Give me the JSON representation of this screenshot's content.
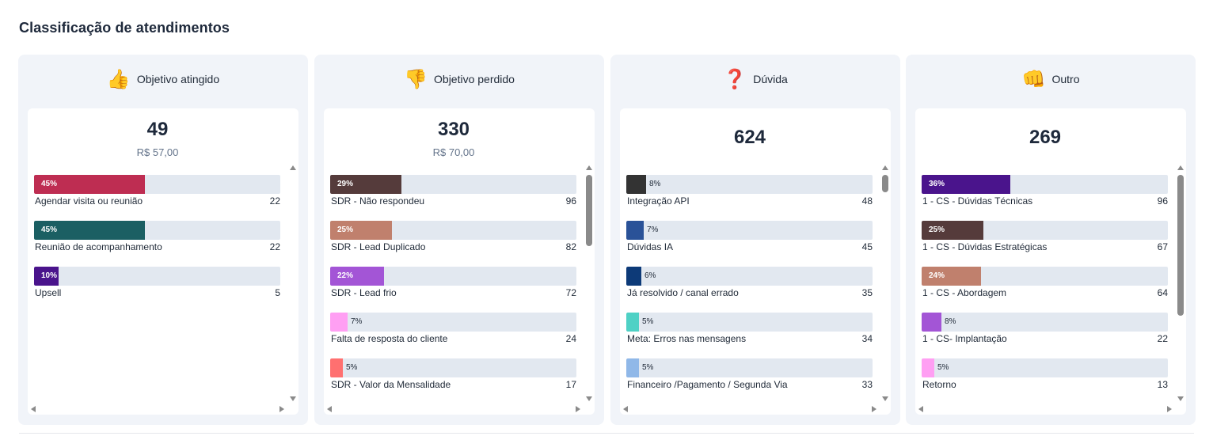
{
  "section": {
    "title": "Classificação de atendimentos"
  },
  "cards": [
    {
      "emoji": "👍",
      "icon": "thumbs-up-icon",
      "label": "Objetivo atingido",
      "total": "49",
      "value": "R$ 57,00",
      "items": [
        {
          "pct_label": "45%",
          "pct": 0.45,
          "color": "#be2d52",
          "label": "Agendar visita ou reunião",
          "count": "22"
        },
        {
          "pct_label": "45%",
          "pct": 0.45,
          "color": "#1b5f63",
          "label": "Reunião de acompanhamento",
          "count": "22"
        },
        {
          "pct_label": "10%",
          "pct": 0.1,
          "color": "#4a148c",
          "label": "Upsell",
          "count": "5"
        }
      ]
    },
    {
      "emoji": "👎",
      "icon": "thumbs-down-icon",
      "label": "Objetivo perdido",
      "total": "330",
      "value": "R$ 70,00",
      "items": [
        {
          "pct_label": "29%",
          "pct": 0.29,
          "color": "#553b3b",
          "label": "SDR - Não respondeu",
          "count": "96"
        },
        {
          "pct_label": "25%",
          "pct": 0.25,
          "color": "#c0806d",
          "label": "SDR - Lead Duplicado",
          "count": "82"
        },
        {
          "pct_label": "22%",
          "pct": 0.22,
          "color": "#a355d6",
          "label": "SDR - Lead frio",
          "count": "72"
        },
        {
          "pct_label": "7%",
          "pct": 0.07,
          "color": "#ff9ff3",
          "label": "Falta de resposta do cliente",
          "count": "24"
        },
        {
          "pct_label": "5%",
          "pct": 0.05,
          "color": "#ff7070",
          "label": "SDR - Valor da Mensalidade",
          "count": "17"
        }
      ]
    },
    {
      "emoji": "❓",
      "icon": "question-mark-icon",
      "label": "Dúvida",
      "total": "624",
      "value": "",
      "items": [
        {
          "pct_label": "8%",
          "pct": 0.08,
          "color": "#333333",
          "label": "Integração API",
          "count": "48"
        },
        {
          "pct_label": "7%",
          "pct": 0.07,
          "color": "#2a5298",
          "label": "Dúvidas IA",
          "count": "45"
        },
        {
          "pct_label": "6%",
          "pct": 0.06,
          "color": "#0d3a78",
          "label": "Já resolvido / canal errado",
          "count": "35"
        },
        {
          "pct_label": "5%",
          "pct": 0.05,
          "color": "#4fd1c5",
          "label": "Meta: Erros nas mensagens",
          "count": "34"
        },
        {
          "pct_label": "5%",
          "pct": 0.05,
          "color": "#90b8e8",
          "label": "Financeiro /Pagamento / Segunda Via",
          "count": "33"
        }
      ]
    },
    {
      "emoji": "👊",
      "icon": "fist-icon",
      "label": "Outro",
      "total": "269",
      "value": "",
      "items": [
        {
          "pct_label": "36%",
          "pct": 0.36,
          "color": "#4a148c",
          "label": "1 - CS - Dúvidas Técnicas",
          "count": "96"
        },
        {
          "pct_label": "25%",
          "pct": 0.25,
          "color": "#553b3b",
          "label": "1 - CS - Dúvidas Estratégicas",
          "count": "67"
        },
        {
          "pct_label": "24%",
          "pct": 0.24,
          "color": "#c0806d",
          "label": "1 - CS - Abordagem",
          "count": "64"
        },
        {
          "pct_label": "8%",
          "pct": 0.08,
          "color": "#a355d6",
          "label": "1 - CS- Implantação",
          "count": "22"
        },
        {
          "pct_label": "5%",
          "pct": 0.05,
          "color": "#ff9ff3",
          "label": "Retorno",
          "count": "13"
        }
      ]
    }
  ],
  "scroll": [
    {
      "position": 0.0,
      "visible": 1.0
    },
    {
      "position": 0.0,
      "visible": 0.33
    },
    {
      "position": 0.0,
      "visible": 0.08
    },
    {
      "position": 0.0,
      "visible": 0.65
    }
  ]
}
